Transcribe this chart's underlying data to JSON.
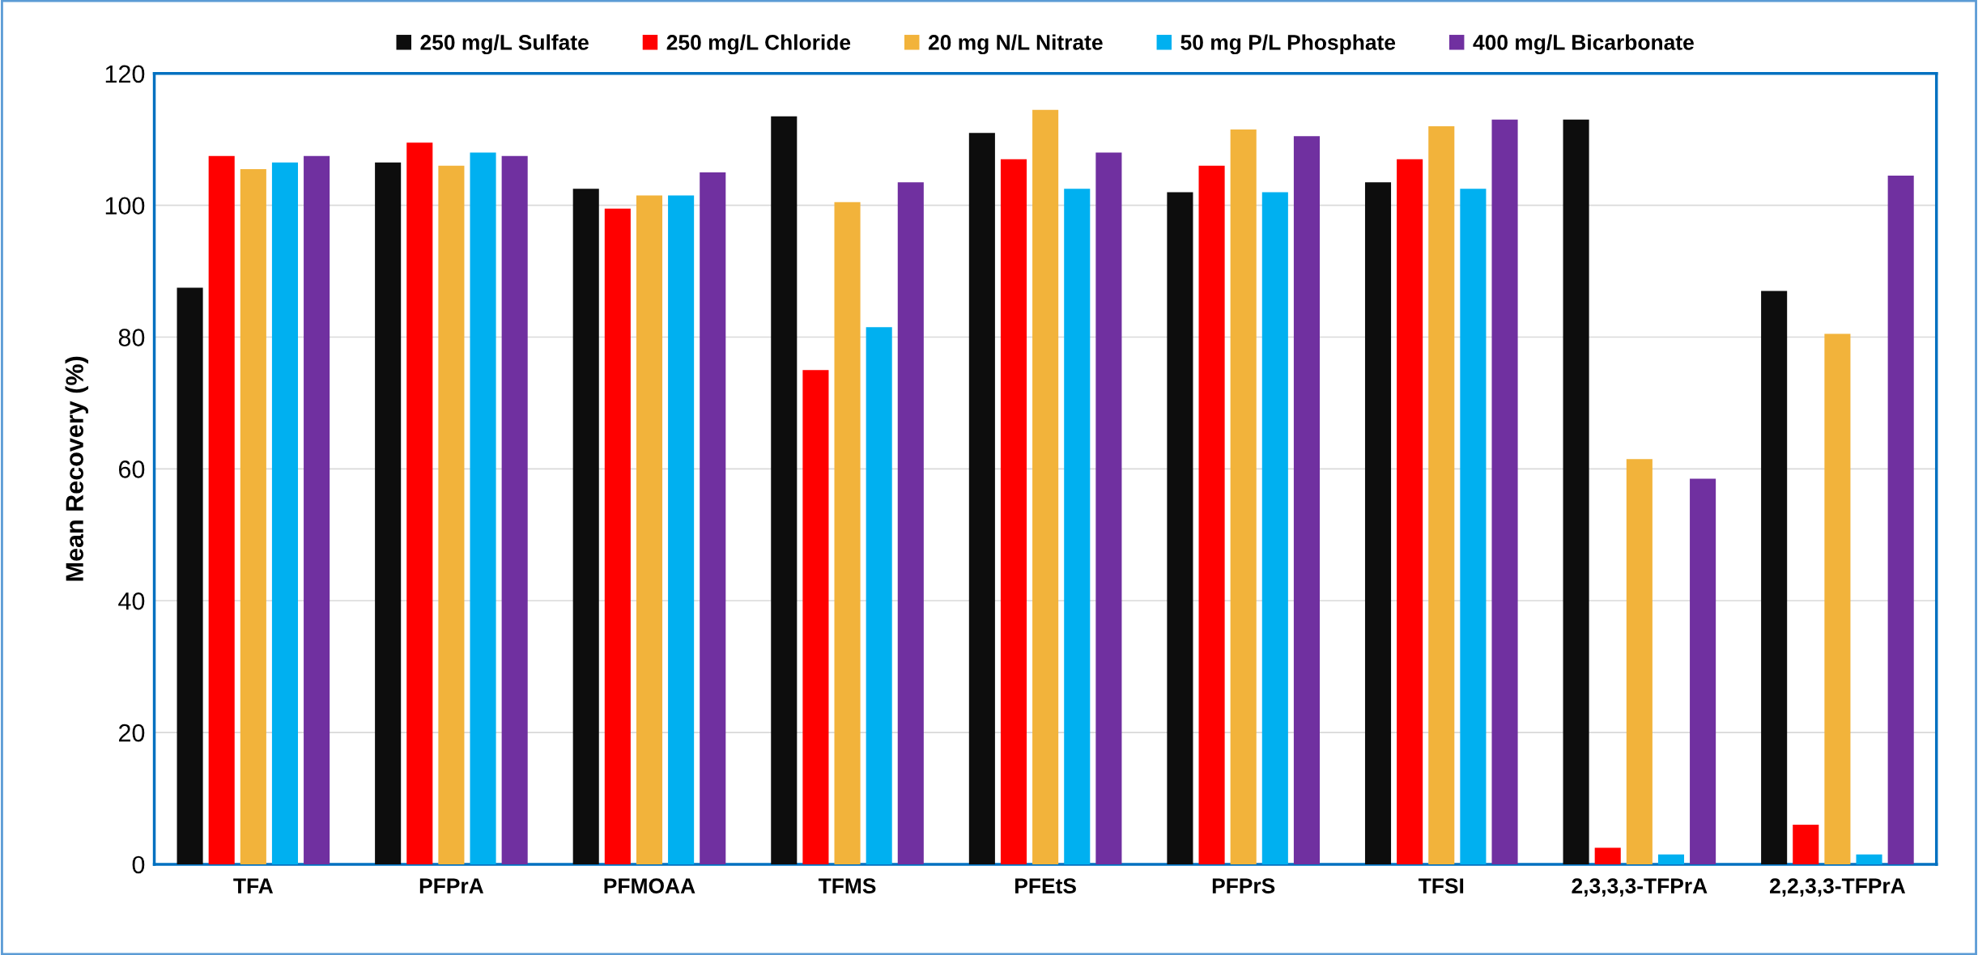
{
  "chart_data": {
    "type": "bar",
    "ylabel": "Mean Recovery (%)",
    "categories": [
      "TFA",
      "PFPrA",
      "PFMOAA",
      "TFMS",
      "PFEtS",
      "PFPrS",
      "TFSI",
      "2,3,3,3-TFPrA",
      "2,2,3,3-TFPrA"
    ],
    "series": [
      {
        "name": "250 mg/L Sulfate",
        "color": "#0d0d0d",
        "values": [
          87.5,
          106.5,
          102.5,
          113.5,
          111,
          102,
          103.5,
          113,
          87
        ]
      },
      {
        "name": "250 mg/L Chloride",
        "color": "#ff0000",
        "values": [
          107.5,
          109.5,
          99.5,
          75,
          107,
          106,
          107,
          2.5,
          6
        ]
      },
      {
        "name": "20 mg N/L Nitrate",
        "color": "#f2b33b",
        "values": [
          105.5,
          106,
          101.5,
          100.5,
          114.5,
          111.5,
          112,
          61.5,
          80.5
        ]
      },
      {
        "name": "50 mg P/L Phosphate",
        "color": "#00b0f0",
        "values": [
          106.5,
          108,
          101.5,
          81.5,
          102.5,
          102,
          102.5,
          1.5,
          1.5
        ]
      },
      {
        "name": "400 mg/L Bicarbonate",
        "color": "#7030a0",
        "values": [
          107.5,
          107.5,
          105,
          103.5,
          108,
          110.5,
          113,
          58.5,
          104.5
        ]
      }
    ],
    "ylim": [
      0,
      120
    ],
    "yticks": [
      0,
      20,
      40,
      60,
      80,
      100,
      120
    ],
    "grid": "y",
    "legend": "top"
  }
}
